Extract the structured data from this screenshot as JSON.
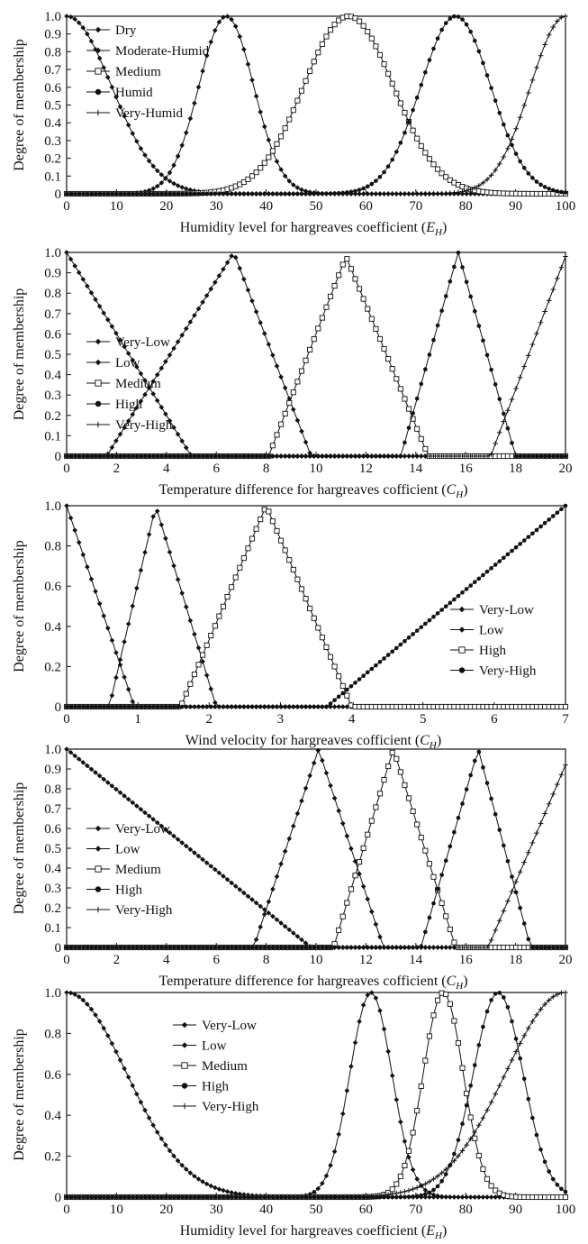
{
  "chart_data": [
    {
      "type": "line",
      "shape": "gauss",
      "xlabel_main": "Humidity level for hargreaves coefficient (",
      "xlabel_sym": "E",
      "xlabel_sub": "H",
      "xlabel_end": ")",
      "ylabel": "Degree of membership",
      "xlim": [
        0,
        100
      ],
      "ylim": [
        0,
        1
      ],
      "xticks": [
        0,
        10,
        20,
        30,
        40,
        50,
        60,
        70,
        80,
        90,
        100
      ],
      "yticks": [
        0,
        0.1,
        0.2,
        0.3,
        0.4,
        0.5,
        0.6,
        0.7,
        0.8,
        0.9,
        1.0
      ],
      "ytick_labels": [
        "0",
        "0.1",
        "0.2",
        "0.3",
        "0.4",
        "0.5",
        "0.6",
        "0.7",
        "0.8",
        "0.9",
        "1.0"
      ],
      "legend_position": "top-left",
      "series": [
        {
          "name": "Dry",
          "marker": "diamond",
          "center": 0,
          "sigma": 9
        },
        {
          "name": "Moderate-Humid",
          "marker": "diamond",
          "center": 32,
          "sigma": 5.5
        },
        {
          "name": "Medium",
          "marker": "square",
          "center": 56.5,
          "sigma": 9
        },
        {
          "name": "Humid",
          "marker": "circle",
          "center": 78,
          "sigma": 7
        },
        {
          "name": "Very-Humid",
          "marker": "plus",
          "center": 100,
          "sigma": 7
        }
      ]
    },
    {
      "type": "line",
      "shape": "tri",
      "xlabel_main": "Temperature difference for hargreaves cofficient (",
      "xlabel_sym": "C",
      "xlabel_sub": "H",
      "xlabel_end": ")",
      "ylabel": "Degree of membership",
      "xlim": [
        0,
        20
      ],
      "ylim": [
        0,
        1
      ],
      "xticks": [
        0,
        2,
        4,
        6,
        8,
        10,
        12,
        14,
        16,
        18,
        20
      ],
      "yticks": [
        0,
        0.1,
        0.2,
        0.3,
        0.4,
        0.5,
        0.6,
        0.7,
        0.8,
        0.9,
        1.0
      ],
      "ytick_labels": [
        "0",
        "0.1",
        "0.2",
        "0.3",
        "0.4",
        "0.5",
        "0.6",
        "0.7",
        "0.8",
        "0.9",
        "1.0"
      ],
      "legend_position": "bottom-left",
      "series": [
        {
          "name": "Very-Low",
          "marker": "diamond",
          "points": [
            [
              0,
              1
            ],
            [
              5,
              0
            ],
            [
              20,
              0
            ]
          ]
        },
        {
          "name": "Low",
          "marker": "diamond",
          "points": [
            [
              0,
              0
            ],
            [
              1.6,
              0
            ],
            [
              6.7,
              1
            ],
            [
              9.8,
              0
            ],
            [
              20,
              0
            ]
          ]
        },
        {
          "name": "Medium",
          "marker": "square",
          "points": [
            [
              0,
              0
            ],
            [
              8.1,
              0
            ],
            [
              11.2,
              0.98
            ],
            [
              14.5,
              0
            ],
            [
              20,
              0
            ]
          ]
        },
        {
          "name": "High",
          "marker": "circle",
          "points": [
            [
              0,
              0
            ],
            [
              13.4,
              0
            ],
            [
              15.7,
              1
            ],
            [
              18,
              0
            ],
            [
              20,
              0
            ]
          ]
        },
        {
          "name": "Very-High",
          "marker": "plus",
          "points": [
            [
              0,
              0
            ],
            [
              17,
              0
            ],
            [
              20,
              0.98
            ]
          ]
        }
      ]
    },
    {
      "type": "line",
      "shape": "tri",
      "xlabel_main": "Wind velocity for hargreaves cofficient (",
      "xlabel_sym": "C",
      "xlabel_sub": "H",
      "xlabel_end": ")",
      "ylabel": "Degree of membership",
      "xlim": [
        0,
        7
      ],
      "ylim": [
        0,
        1
      ],
      "xticks": [
        0,
        1,
        2,
        3,
        4,
        5,
        6,
        7
      ],
      "yticks": [
        0,
        0.2,
        0.4,
        0.6,
        0.8,
        1.0
      ],
      "ytick_labels": [
        "0",
        "0.2",
        "0.4",
        "0.6",
        "0.8",
        "1.0"
      ],
      "legend_position": "bottom-right",
      "series": [
        {
          "name": "Very-Low",
          "marker": "diamond",
          "points": [
            [
              0,
              1
            ],
            [
              0.95,
              0
            ],
            [
              7,
              0
            ]
          ]
        },
        {
          "name": "Low",
          "marker": "diamond",
          "points": [
            [
              0,
              0
            ],
            [
              0.6,
              0
            ],
            [
              1.25,
              1
            ],
            [
              2.1,
              0
            ],
            [
              7,
              0
            ]
          ]
        },
        {
          "name": "High",
          "marker": "square",
          "points": [
            [
              0,
              0
            ],
            [
              1.6,
              0
            ],
            [
              2.8,
              1
            ],
            [
              4.0,
              0
            ],
            [
              7,
              0
            ]
          ]
        },
        {
          "name": "Very-High",
          "marker": "circle",
          "points": [
            [
              0,
              0
            ],
            [
              3.65,
              0
            ],
            [
              7,
              1
            ]
          ]
        }
      ]
    },
    {
      "type": "line",
      "shape": "tri",
      "xlabel_main": "Temperature difference for hargreaves cofficient (",
      "xlabel_sym": "C",
      "xlabel_sub": "H",
      "xlabel_end": ")",
      "ylabel": "Degree of membership",
      "xlim": [
        0,
        20
      ],
      "ylim": [
        0,
        1
      ],
      "xticks": [
        0,
        2,
        4,
        6,
        8,
        10,
        12,
        14,
        16,
        18,
        20
      ],
      "yticks": [
        0,
        0.1,
        0.2,
        0.3,
        0.4,
        0.5,
        0.6,
        0.7,
        0.8,
        0.9,
        1.0
      ],
      "ytick_labels": [
        "0",
        "0.1",
        "0.2",
        "0.3",
        "0.4",
        "0.5",
        "0.6",
        "0.7",
        "0.8",
        "0.9",
        "1.0"
      ],
      "legend_position": "bottom-left",
      "series": [
        {
          "name": "Very-Low",
          "marker": "diamond",
          "points": [
            [
              0,
              1
            ],
            [
              9.8,
              0
            ],
            [
              20,
              0
            ]
          ]
        },
        {
          "name": "Low",
          "marker": "diamond",
          "points": [
            [
              0,
              0
            ],
            [
              7.5,
              0
            ],
            [
              10.1,
              1
            ],
            [
              12.7,
              0
            ],
            [
              20,
              0
            ]
          ]
        },
        {
          "name": "Medium",
          "marker": "square",
          "points": [
            [
              0,
              0
            ],
            [
              10.7,
              0
            ],
            [
              13.1,
              1
            ],
            [
              15.6,
              0
            ],
            [
              20,
              0
            ]
          ]
        },
        {
          "name": "High",
          "marker": "circle",
          "points": [
            [
              0,
              0
            ],
            [
              14.2,
              0
            ],
            [
              16.5,
              1
            ],
            [
              18.6,
              0
            ],
            [
              20,
              0
            ]
          ]
        },
        {
          "name": "Very-High",
          "marker": "plus",
          "points": [
            [
              0,
              0
            ],
            [
              16.9,
              0
            ],
            [
              20,
              0.92
            ]
          ]
        }
      ]
    },
    {
      "type": "line",
      "shape": "gauss",
      "xlabel_main": "Humidity level for hargreaves coefficient (",
      "xlabel_sym": "E",
      "xlabel_sub": "H",
      "xlabel_end": ")",
      "ylabel": "Degree of membership",
      "xlim": [
        0,
        100
      ],
      "ylim": [
        0,
        1
      ],
      "xticks": [
        0,
        10,
        20,
        30,
        40,
        50,
        60,
        70,
        80,
        90,
        100
      ],
      "yticks": [
        0,
        0.2,
        0.4,
        0.6,
        0.8,
        1.0
      ],
      "ytick_labels": [
        "0",
        "0.2",
        "0.4",
        "0.6",
        "0.8",
        "1.0"
      ],
      "legend_position": "top-center",
      "series": [
        {
          "name": "Very-Low",
          "marker": "diamond",
          "center": 0,
          "sigma": 12
        },
        {
          "name": "Low",
          "marker": "diamond",
          "center": 61,
          "sigma": 4.2
        },
        {
          "name": "Medium",
          "marker": "square",
          "center": 75.5,
          "sigma": 4
        },
        {
          "name": "High",
          "marker": "circle",
          "center": 86.5,
          "sigma": 5
        },
        {
          "name": "Very-High",
          "marker": "plus",
          "center": 100,
          "sigma": 12
        }
      ]
    }
  ]
}
